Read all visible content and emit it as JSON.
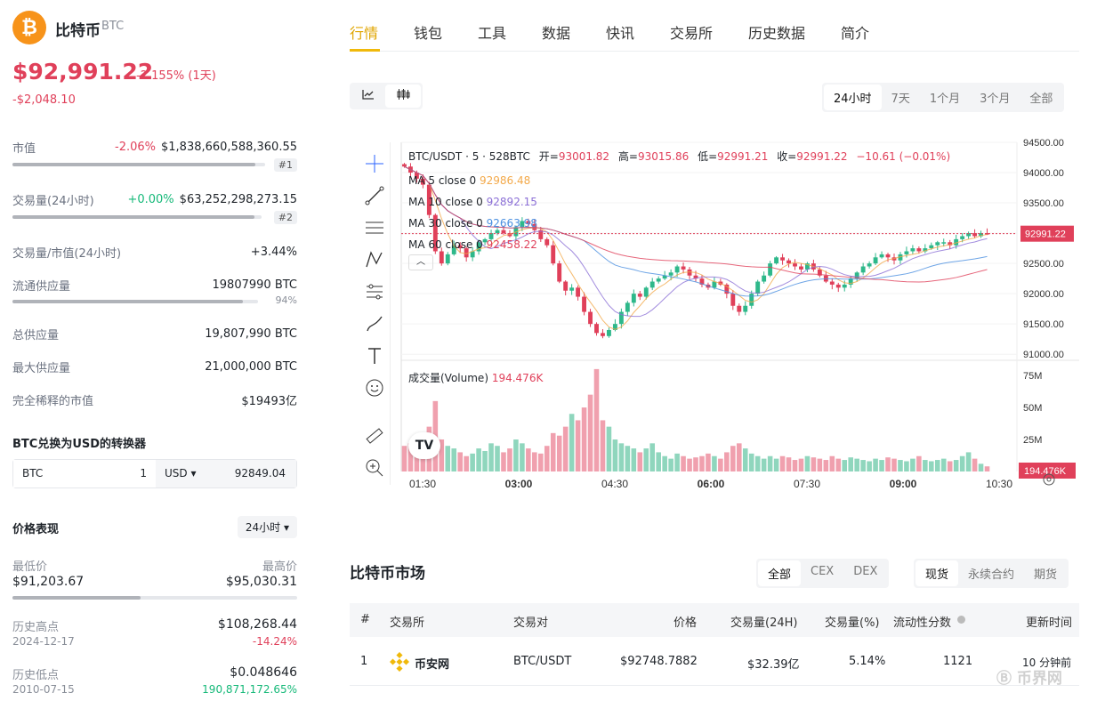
{
  "coin": {
    "logo_glyph": "₿",
    "name": "比特币",
    "symbol": "BTC",
    "price": "$92,991.22",
    "change_pct": "-2.155% (1天)",
    "change_abs": "-$2,048.10"
  },
  "stats": {
    "market_cap": {
      "label": "市值",
      "change": "-2.06%",
      "value": "$1,838,660,588,360.55",
      "rank": "#1",
      "bar_fraction": 0.96
    },
    "volume_24h": {
      "label": "交易量(24小时)",
      "change": "+0.00%",
      "value": "$63,252,298,273.15",
      "rank": "#2",
      "bar_fraction": 0.97
    },
    "vol_mcap": {
      "label": "交易量/市值(24小时)",
      "value": "+3.44%"
    },
    "circulating": {
      "label": "流通供应量",
      "value": "19807990 BTC",
      "pct": "94%",
      "bar_fraction": 0.94
    },
    "total_supply": {
      "label": "总供应量",
      "value": "19,807,990 BTC"
    },
    "max_supply": {
      "label": "最大供应量",
      "value": "21,000,000 BTC"
    },
    "fdv": {
      "label": "完全稀释的市值",
      "value": "$19493亿"
    }
  },
  "converter": {
    "title": "BTC兑换为USD的转换器",
    "from_symbol": "BTC",
    "from_amount": "1",
    "to_symbol": "USD ▾",
    "to_amount": "92849.04"
  },
  "performance": {
    "title": "价格表现",
    "period": "24小时 ▾",
    "low_label": "最低价",
    "low_value": "$91,203.67",
    "high_label": "最高价",
    "high_value": "$95,030.31",
    "range_fraction": 0.45,
    "ath_label": "历史高点",
    "ath_date": "2024-12-17",
    "ath_value": "$108,268.44",
    "ath_change": "-14.24%",
    "atl_label": "历史低点",
    "atl_date": "2010-07-15",
    "atl_value": "$0.048646",
    "atl_change": "190,871,172.65%"
  },
  "tabs": [
    "行情",
    "钱包",
    "工具",
    "数据",
    "快讯",
    "交易所",
    "历史数据",
    "简介"
  ],
  "chart_controls": {
    "type_icons": [
      "line-chart-icon",
      "candlestick-icon"
    ],
    "periods": [
      "24小时",
      "7天",
      "1个月",
      "3个月",
      "全部"
    ],
    "active_period": "24小时"
  },
  "chart_legend": {
    "pair": "BTC/USDT · 5 · 528BTC",
    "open_label": "开=",
    "open": "93001.82",
    "high_label": "高=",
    "high": "93015.86",
    "low_label": "低=",
    "low": "92991.21",
    "close_label": "收=",
    "close": "92991.22",
    "change": "−10.61 (−0.01%)",
    "ma5_label": "MA 5 close 0",
    "ma5": "92986.48",
    "ma10_label": "MA 10 close 0",
    "ma10": "92892.15",
    "ma30_label": "MA 30 close 0",
    "ma30": "92663.98",
    "ma60_label": "MA 60 close 0",
    "ma60": "92458.22",
    "volume_label": "成交量(Volume)",
    "volume": "194.476K"
  },
  "chart_data": {
    "type": "candlestick",
    "title": "BTC/USDT · 5 · 528BTC",
    "price_axis": [
      "94500.00",
      "94000.00",
      "93500.00",
      "93000.00",
      "92500.00",
      "92000.00",
      "91500.00",
      "91000.00"
    ],
    "price_ylim": [
      90900,
      94500
    ],
    "current_price_label": "92991.22",
    "current_price": 92991.22,
    "volume_axis": [
      "75M",
      "50M",
      "25M"
    ],
    "volume_ylim": [
      0,
      82
    ],
    "current_volume_label": "194.476K",
    "time_axis": [
      "01:30",
      "03:00",
      "04:30",
      "06:00",
      "07:30",
      "09:00",
      "10:30"
    ],
    "close_series": [
      94100,
      94000,
      93900,
      93800,
      93300,
      92700,
      92500,
      92650,
      92800,
      92750,
      92600,
      92700,
      92850,
      92900,
      93000,
      93050,
      93000,
      92950,
      93100,
      93200,
      93150,
      93050,
      92900,
      92800,
      92500,
      92200,
      92050,
      92100,
      91950,
      91700,
      91500,
      91350,
      91300,
      91400,
      91500,
      91700,
      91850,
      92000,
      91950,
      92100,
      92200,
      92250,
      92300,
      92350,
      92450,
      92400,
      92300,
      92250,
      92150,
      92100,
      92200,
      92150,
      92000,
      91800,
      91700,
      91800,
      92000,
      92200,
      92300,
      92500,
      92600,
      92550,
      92500,
      92450,
      92400,
      92500,
      92400,
      92300,
      92200,
      92150,
      92100,
      92150,
      92250,
      92350,
      92450,
      92500,
      92600,
      92650,
      92600,
      92550,
      92650,
      92700,
      92750,
      92700,
      92750,
      92800,
      92850,
      92850,
      92800,
      92900,
      92950,
      93000,
      92950,
      93000,
      92991.22
    ],
    "volume_series": [
      20,
      22,
      18,
      15,
      35,
      55,
      25,
      20,
      18,
      15,
      12,
      14,
      18,
      16,
      22,
      20,
      15,
      18,
      25,
      22,
      18,
      15,
      14,
      20,
      30,
      28,
      35,
      45,
      40,
      50,
      60,
      80,
      40,
      35,
      25,
      22,
      20,
      18,
      15,
      18,
      22,
      15,
      12,
      10,
      14,
      12,
      10,
      11,
      12,
      14,
      12,
      10,
      15,
      20,
      22,
      18,
      14,
      12,
      10,
      12,
      10,
      12,
      11,
      9,
      10,
      12,
      11,
      10,
      9,
      12,
      10,
      9,
      11,
      10,
      9,
      8,
      10,
      9,
      11,
      10,
      9,
      8,
      10,
      12,
      9,
      8,
      9,
      10,
      8,
      9,
      12,
      15,
      10,
      6,
      4
    ]
  },
  "chart_tools": [
    "crosshair-icon",
    "trendline-icon",
    "fib-icon",
    "pattern-icon",
    "measure-icon",
    "brush-icon",
    "text-icon",
    "emoji-icon",
    "ruler-icon",
    "zoom-in-icon"
  ],
  "market": {
    "title": "比特币市场",
    "filter_exchange": [
      "全部",
      "CEX",
      "DEX"
    ],
    "filter_type": [
      "现货",
      "永续合约",
      "期货"
    ],
    "headers": [
      "#",
      "交易所",
      "交易对",
      "价格",
      "交易量(24H)",
      "交易量(%)",
      "流动性分数",
      "更新时间"
    ],
    "rows": [
      {
        "rank": "1",
        "exchange": "币安网",
        "pair": "BTC/USDT",
        "price": "$92748.7882",
        "volume": "$32.39亿",
        "volume_pct": "5.14%",
        "liquidity": "1121",
        "updated": "10 分钟前"
      }
    ]
  },
  "watermark": "币界网"
}
